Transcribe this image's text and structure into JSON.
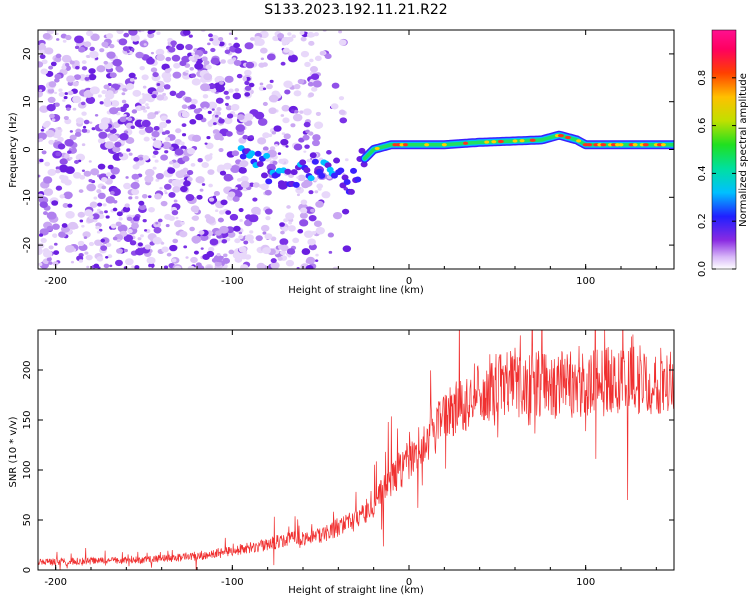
{
  "title": "S133.2023.192.11.21.R22",
  "chart_data": [
    {
      "type": "heatmap",
      "xlabel": "Height of straight line (km)",
      "ylabel": "Frequency (Hz)",
      "xlim": [
        -210,
        150
      ],
      "ylim": [
        -25,
        25
      ],
      "xticks": [
        -200,
        -100,
        0,
        100
      ],
      "yticks": [
        -20,
        -10,
        0,
        10,
        20
      ],
      "colorbar": {
        "label": "Normalized spectral amplitude",
        "range": [
          0,
          1
        ],
        "ticks": [
          "0.0",
          "0.2",
          "0.4",
          "0.6",
          "0.8"
        ]
      },
      "trace": {
        "description_points": [
          [
            -90,
            0
          ],
          [
            -80,
            -4
          ],
          [
            -70,
            -7
          ],
          [
            -60,
            -4
          ],
          [
            -50,
            -3
          ],
          [
            -40,
            -5
          ],
          [
            -33,
            -7
          ],
          [
            -28,
            -3
          ],
          [
            -20,
            0
          ],
          [
            -10,
            1
          ],
          [
            0,
            1
          ],
          [
            20,
            1
          ],
          [
            40,
            1.5
          ],
          [
            75,
            2
          ],
          [
            85,
            3
          ],
          [
            95,
            2
          ],
          [
            100,
            1
          ],
          [
            120,
            1
          ],
          [
            150,
            1
          ]
        ]
      }
    },
    {
      "type": "line",
      "xlabel": "Height of straight line (km)",
      "ylabel": "SNR (10 * v/v)",
      "xlim": [
        -210,
        150
      ],
      "ylim": [
        0,
        240
      ],
      "xticks": [
        -200,
        -100,
        0,
        100
      ],
      "yticks": [
        0,
        50,
        100,
        150,
        200
      ],
      "color": "#f03030",
      "envelope_x": [
        -210,
        -150,
        -120,
        -90,
        -70,
        -50,
        -30,
        -20,
        -10,
        0,
        10,
        20,
        30,
        40,
        50,
        60,
        80,
        100,
        120,
        140,
        150
      ],
      "envelope_y": [
        8,
        10,
        14,
        22,
        30,
        35,
        50,
        65,
        90,
        110,
        130,
        150,
        165,
        178,
        185,
        185,
        185,
        185,
        190,
        190,
        195
      ]
    }
  ]
}
